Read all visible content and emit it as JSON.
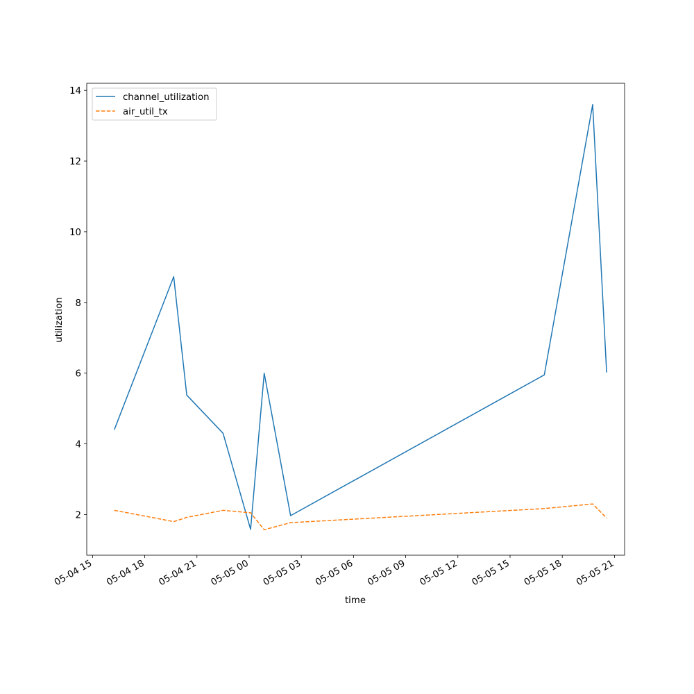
{
  "chart_data": {
    "type": "line",
    "title": "",
    "xlabel": "time",
    "ylabel": "utilization",
    "x_axis_type": "datetime",
    "xlim": [
      "2025-05-04 14:40",
      "2025-05-05 21:35"
    ],
    "ylim": [
      0.85,
      14.2
    ],
    "x_ticks": [
      "2025-05-04 15:00",
      "2025-05-04 18:00",
      "2025-05-04 21:00",
      "2025-05-05 00:00",
      "2025-05-05 03:00",
      "2025-05-05 06:00",
      "2025-05-05 09:00",
      "2025-05-05 12:00",
      "2025-05-05 15:00",
      "2025-05-05 18:00",
      "2025-05-05 21:00"
    ],
    "x_tick_labels": [
      "05-04 15",
      "05-04 18",
      "05-04 21",
      "05-05 00",
      "05-05 03",
      "05-05 06",
      "05-05 09",
      "05-05 12",
      "05-05 15",
      "05-05 18",
      "05-05 21"
    ],
    "y_ticks": [
      2,
      4,
      6,
      8,
      10,
      12,
      14
    ],
    "y_tick_labels": [
      "2",
      "4",
      "6",
      "8",
      "10",
      "12",
      "14"
    ],
    "grid": false,
    "legend_position": "top-left",
    "series": [
      {
        "name": "channel_utilization",
        "color": "#1f77b4",
        "dash": "solid",
        "x": [
          "2025-05-04 16:15",
          "2025-05-04 19:40",
          "2025-05-04 20:25",
          "2025-05-04 22:30",
          "2025-05-05 00:05",
          "2025-05-05 00:52",
          "2025-05-05 02:23",
          "2025-05-05 16:58",
          "2025-05-05 19:45",
          "2025-05-05 20:33"
        ],
        "y": [
          4.4,
          8.73,
          5.38,
          4.3,
          1.58,
          6.0,
          1.97,
          5.95,
          13.6,
          6.02
        ]
      },
      {
        "name": "air_util_tx",
        "color": "#ff7f0e",
        "dash": "dashed",
        "x": [
          "2025-05-04 16:15",
          "2025-05-04 19:40",
          "2025-05-04 20:25",
          "2025-05-04 22:30",
          "2025-05-05 00:05",
          "2025-05-05 00:52",
          "2025-05-05 02:23",
          "2025-05-05 16:58",
          "2025-05-05 19:45",
          "2025-05-05 20:33"
        ],
        "y": [
          2.12,
          1.8,
          1.92,
          2.12,
          2.05,
          1.57,
          1.77,
          2.17,
          2.3,
          1.9
        ]
      }
    ]
  }
}
